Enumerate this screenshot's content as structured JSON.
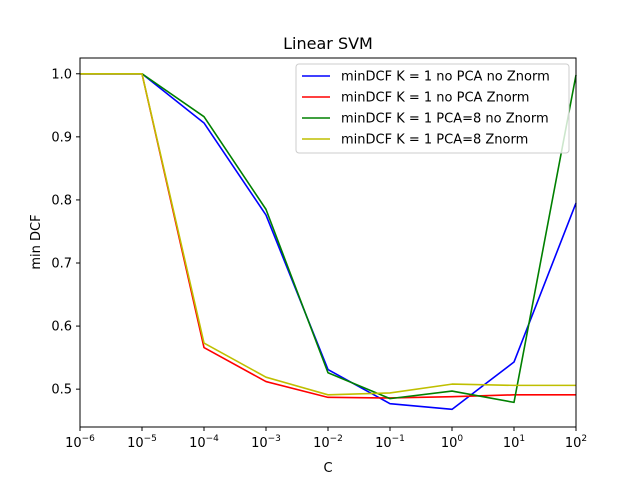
{
  "chart_data": {
    "type": "line",
    "title": "Linear SVM",
    "xlabel": "C",
    "ylabel": "min DCF",
    "x_scale": "log",
    "xlim": [
      1e-06,
      100
    ],
    "ylim": [
      0.44,
      1.025
    ],
    "grid": false,
    "legend_position": "upper-right",
    "x_ticks": [
      {
        "value": 1e-06,
        "base": "10",
        "exp": "−6"
      },
      {
        "value": 1e-05,
        "base": "10",
        "exp": "−5"
      },
      {
        "value": 0.0001,
        "base": "10",
        "exp": "−4"
      },
      {
        "value": 0.001,
        "base": "10",
        "exp": "−3"
      },
      {
        "value": 0.01,
        "base": "10",
        "exp": "−2"
      },
      {
        "value": 0.1,
        "base": "10",
        "exp": "−1"
      },
      {
        "value": 1,
        "base": "10",
        "exp": "0"
      },
      {
        "value": 10,
        "base": "10",
        "exp": "1"
      },
      {
        "value": 100,
        "base": "10",
        "exp": "2"
      }
    ],
    "y_ticks": [
      {
        "value": 0.5,
        "label": "0.5"
      },
      {
        "value": 0.6,
        "label": "0.6"
      },
      {
        "value": 0.7,
        "label": "0.7"
      },
      {
        "value": 0.8,
        "label": "0.8"
      },
      {
        "value": 0.9,
        "label": "0.9"
      },
      {
        "value": 1.0,
        "label": "1.0"
      }
    ],
    "x": [
      1e-06,
      1e-05,
      0.0001,
      0.001,
      0.01,
      0.1,
      1,
      10,
      100
    ],
    "series": [
      {
        "name": "minDCF K = 1 no PCA no Znorm",
        "color": "#0000ff",
        "values": [
          1.0,
          1.0,
          0.922,
          0.776,
          0.531,
          0.477,
          0.468,
          0.543,
          0.795
        ]
      },
      {
        "name": "minDCF K = 1 no PCA Znorm",
        "color": "#ff0000",
        "values": [
          1.0,
          1.0,
          0.566,
          0.512,
          0.487,
          0.486,
          0.488,
          0.491,
          0.491
        ]
      },
      {
        "name": "minDCF K = 1 PCA=8 no Znorm",
        "color": "#008000",
        "values": [
          1.0,
          1.0,
          0.932,
          0.785,
          0.526,
          0.485,
          0.497,
          0.479,
          0.998
        ]
      },
      {
        "name": "minDCF K = 1 PCA=8 Znorm",
        "color": "#bfbf00",
        "values": [
          1.0,
          1.0,
          0.573,
          0.519,
          0.491,
          0.494,
          0.508,
          0.506,
          0.506
        ]
      }
    ]
  }
}
